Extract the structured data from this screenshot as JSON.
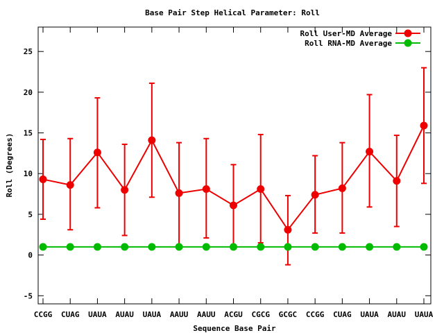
{
  "chart_data": {
    "type": "line",
    "title": "Base Pair Step Helical Parameter: Roll",
    "xlabel": "Sequence Base Pair",
    "ylabel": "Roll (Degrees)",
    "ylim": [
      -6,
      28
    ],
    "yticks": [
      -5,
      0,
      5,
      10,
      15,
      20,
      25
    ],
    "categories": [
      "CCGG",
      "CUAG",
      "UAUA",
      "AUAU",
      "UAUA",
      "AAUU",
      "AAUU",
      "ACGU",
      "CGCG",
      "GCGC",
      "CCGG",
      "CUAG",
      "UAUA",
      "AUAU",
      "UAUA"
    ],
    "legend_position": "top-right",
    "grid": false,
    "series": [
      {
        "name": "Roll User-MD Average",
        "color": "#ee0000",
        "values": [
          9.3,
          8.6,
          12.6,
          8.0,
          14.1,
          7.6,
          8.1,
          6.1,
          8.1,
          3.1,
          7.4,
          8.2,
          12.7,
          9.1,
          15.9
        ],
        "error_low": [
          4.4,
          3.1,
          5.8,
          2.4,
          7.1,
          1.0,
          2.1,
          1.1,
          1.5,
          -1.2,
          2.7,
          2.7,
          5.9,
          3.5,
          8.8
        ],
        "error_high": [
          14.2,
          14.3,
          19.3,
          13.6,
          21.1,
          13.8,
          14.3,
          11.1,
          14.8,
          7.3,
          12.2,
          13.8,
          19.7,
          14.7,
          23.0
        ]
      },
      {
        "name": "Roll RNA-MD Average",
        "color": "#00bb00",
        "values": [
          1.0,
          1.0,
          1.0,
          1.0,
          1.0,
          1.0,
          1.0,
          1.0,
          1.0,
          1.0,
          1.0,
          1.0,
          1.0,
          1.0,
          1.0
        ]
      }
    ]
  }
}
